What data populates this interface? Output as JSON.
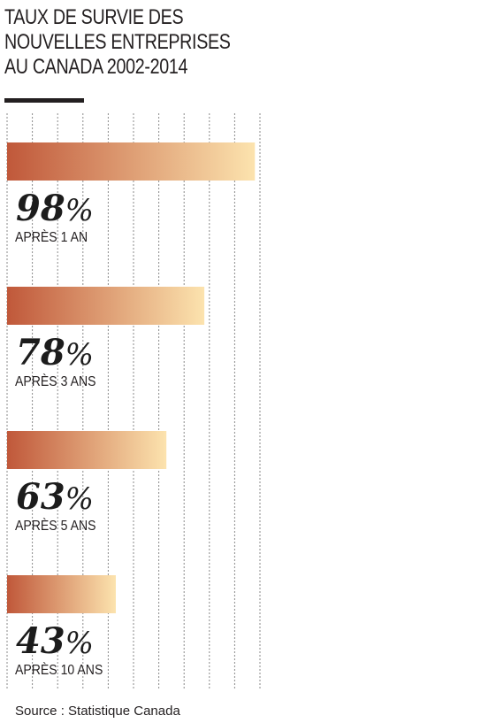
{
  "title_lines": [
    "TAUX DE SURVIE DES",
    "NOUVELLES ENTREPRISES",
    "AU CANADA 2002-2014"
  ],
  "source": "Source : Statistique Canada",
  "colors": {
    "bar_start": "#c0583a",
    "bar_end": "#fce3ae",
    "grid": "#8a8a8a",
    "rule": "#231f20"
  },
  "chart_data": {
    "type": "bar",
    "orientation": "horizontal",
    "title": "TAUX DE SURVIE DES NOUVELLES ENTREPRISES AU CANADA 2002-2014",
    "categories": [
      "APRÈS 1 AN",
      "APRÈS 3 ANS",
      "APRÈS 5 ANS",
      "APRÈS 10 ANS"
    ],
    "values": [
      98,
      78,
      63,
      43
    ],
    "value_labels": [
      "98",
      "78",
      "63",
      "43"
    ],
    "unit": "%",
    "xlim": [
      0,
      100
    ],
    "grid": true
  }
}
